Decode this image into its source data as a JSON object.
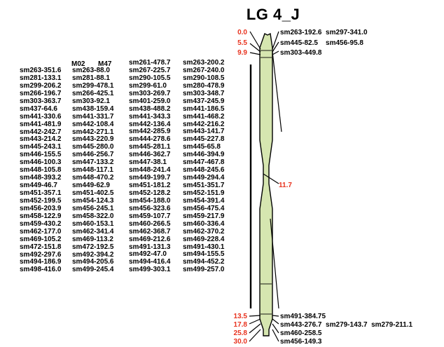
{
  "title": "LG 4_J",
  "top_positions": [
    "0.0",
    "5.5",
    "9.9"
  ],
  "mid_position": "11.7",
  "bottom_positions": [
    "13.5",
    "17.8",
    "25.8",
    "30.0"
  ],
  "top_markers": [
    "sm263-192.6  sm297-341.0",
    "sm445-82.5    sm456-95.8",
    "sm303-449.8"
  ],
  "bottom_markers": [
    "sm491-384.75",
    "sm443-276.7  sm279-143.7  sm279-211.1",
    "sm460-258.5",
    "sm456-149.3"
  ],
  "cluster_headers": [
    "M02",
    "M47"
  ],
  "cluster_columns": [
    [
      "sm263-351.6",
      "sm281-133.1",
      "sm299-206.2",
      "sm266-196.7",
      "sm303-363.7",
      "sm437-64.6",
      "sm441-330.6",
      "sm441-481.9",
      "sm442-242.7",
      "sm443-214.2",
      "sm445-243.1",
      "sm446-155.5",
      "sm446-100.3",
      "sm448-105.8",
      "sm448-393.2",
      "sm449-46.7",
      "sm451-357.1",
      "sm452-199.5",
      "sm456-203.9",
      "sm458-122.9",
      "sm459-430.2",
      "sm462-177.0",
      "sm469-105.2",
      "sm472-151.8",
      "sm492-297.6",
      "sm494-186.9",
      "sm498-416.0"
    ],
    [
      "sm263-88.0",
      "sm281-88.1",
      "sm299-478.1",
      "sm266-425.1",
      "sm303-92.1",
      "sm438-159.4",
      "sm441-331.7",
      "sm442-108.4",
      "sm442-271.1",
      "sm443-220.9",
      "sm445-280.0",
      "sm446-256.7",
      "sm447-133.2",
      "sm448-117.1",
      "sm448-470.2",
      "sm449-62.9",
      "sm451-402.5",
      "sm454-124.3",
      "sm456-245.1",
      "sm458-322.0",
      "sm460-153.1",
      "sm462-341.4",
      "sm469-113.2",
      "sm472-192.5",
      "sm492-394.2",
      "sm494-205.6",
      "sm499-245.4"
    ],
    [
      "sm261-478.7",
      "sm267-225.7",
      "sm290-105.5",
      "sm299-61.0",
      "sm303-269.7",
      "sm401-259.0",
      "sm438-488.2",
      "sm441-343.3",
      "sm442-136.4",
      "sm442-285.9",
      "sm444-278.6",
      "sm445-281.1",
      "sm446-362.7",
      "sm447-38.1",
      "sm448-241.4",
      "sm449-199.7",
      "sm451-181.2",
      "sm452-128.2",
      "sm454-188.0",
      "sm456-323.6",
      "sm459-107.7",
      "sm460-266.5",
      "sm462-368.7",
      "sm469-212.6",
      "sm491-131.3",
      "sm492-47.0",
      "sm494-416.4",
      "sm499-303.1"
    ],
    [
      "sm263-200.2",
      "sm267-240.0",
      "sm290-108.5",
      "sm280-478.9",
      "sm303-348.7",
      "sm437-245.9",
      "sm441-186.5",
      "sm441-468.2",
      "sm442-216.2",
      "sm443-141.7",
      "sm445-227.8",
      "sm445-65.8",
      "sm446-394.9",
      "sm447-467.8",
      "sm448-245.6",
      "sm449-294.4",
      "sm451-351.7",
      "sm452-151.9",
      "sm454-391.4",
      "sm456-475.4",
      "sm459-217.9",
      "sm460-336.4",
      "sm462-370.2",
      "sm469-228.4",
      "sm491-430.1",
      "sm494-155.5",
      "sm494-452.2",
      "sm499-257.0"
    ]
  ],
  "colors": {
    "chromosome_fill": "#d6e6b0",
    "position_text": "#e8321e",
    "marker_text": "#000000"
  }
}
